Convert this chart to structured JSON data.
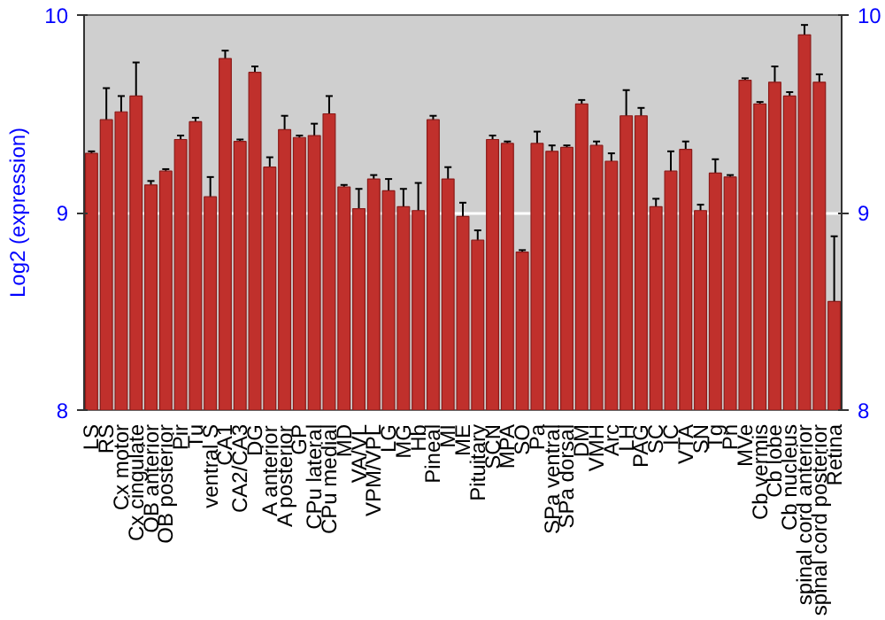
{
  "chart_data": {
    "type": "bar",
    "ylabel": "Log2 (expression)",
    "categories": [
      "LS",
      "RS",
      "Cx motor",
      "Cx cingulate",
      "OB anterior",
      "OB posterior",
      "Pir",
      "Tu",
      "ventral S",
      "CA1",
      "CA2/CA3",
      "DG",
      "A anterior",
      "A posterior",
      "GP",
      "CPu lateral",
      "CPu medial",
      "MD",
      "VA/VL",
      "VPM/VPL",
      "LG",
      "MG",
      "Hb",
      "Pineal",
      "MI",
      "ME",
      "Pituitary",
      "SCN",
      "MPA",
      "SO",
      "Pa",
      "SPa ventral",
      "SPa dorsal",
      "DM",
      "VMH",
      "Arc",
      "LH",
      "PAG",
      "SC",
      "IC",
      "VTA",
      "SN",
      "Tg",
      "Pn",
      "MVe",
      "Cb vermis",
      "Cb lobe",
      "Cb nucleus",
      "spinal cord anterior",
      "spinal cord posterior",
      "Retina"
    ],
    "values": [
      9.3,
      9.47,
      9.51,
      9.59,
      9.14,
      9.21,
      9.37,
      9.46,
      9.08,
      9.78,
      9.36,
      9.71,
      9.23,
      9.42,
      9.38,
      9.39,
      9.5,
      9.13,
      9.02,
      9.17,
      9.11,
      9.03,
      9.01,
      9.47,
      9.17,
      8.98,
      8.86,
      9.37,
      9.35,
      8.8,
      9.35,
      9.31,
      9.33,
      9.55,
      9.34,
      9.26,
      9.49,
      9.49,
      9.03,
      9.21,
      9.32,
      9.01,
      9.2,
      9.18,
      9.67,
      9.55,
      9.66,
      9.59,
      9.9,
      9.66,
      8.55
    ],
    "errors": [
      0.01,
      0.16,
      0.08,
      0.17,
      0.02,
      0.01,
      0.02,
      0.02,
      0.1,
      0.04,
      0.01,
      0.03,
      0.05,
      0.07,
      0.01,
      0.06,
      0.09,
      0.01,
      0.1,
      0.02,
      0.06,
      0.09,
      0.14,
      0.02,
      0.06,
      0.07,
      0.05,
      0.02,
      0.01,
      0.01,
      0.06,
      0.03,
      0.01,
      0.02,
      0.02,
      0.04,
      0.13,
      0.04,
      0.04,
      0.1,
      0.04,
      0.03,
      0.07,
      0.01,
      0.01,
      0.01,
      0.08,
      0.02,
      0.05,
      0.04,
      0.33
    ],
    "color": "#c0302c",
    "ylim": [
      8,
      10
    ],
    "yticks": [
      8,
      9,
      10
    ],
    "y2lim": [
      8,
      10
    ],
    "y2ticks": [
      8,
      9,
      10
    ],
    "grid": "y"
  }
}
